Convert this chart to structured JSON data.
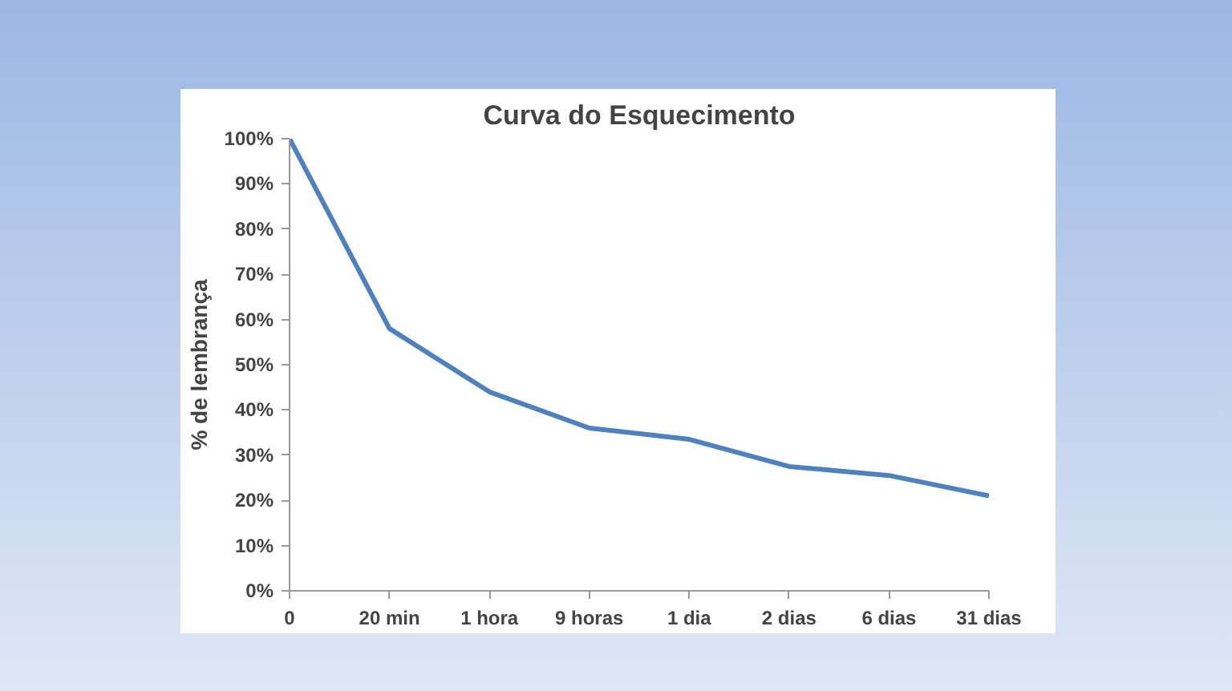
{
  "chart_data": {
    "type": "line",
    "title": "Curva do Esquecimento",
    "ylabel": "% de lembrança",
    "categories": [
      "0",
      "20 min",
      "1 hora",
      "9 horas",
      "1 dia",
      "2 dias",
      "6 dias",
      "31 dias"
    ],
    "series": [
      {
        "color": "#4f81bd",
        "values": [
          100,
          58,
          44,
          36,
          33.5,
          27.5,
          25.5,
          21
        ]
      }
    ],
    "ylim": [
      0,
      100
    ],
    "yticks": [
      {
        "value": 0,
        "label": "0%"
      },
      {
        "value": 10,
        "label": "10%"
      },
      {
        "value": 20,
        "label": "20%"
      },
      {
        "value": 30,
        "label": "30%"
      },
      {
        "value": 40,
        "label": "40%"
      },
      {
        "value": 50,
        "label": "50%"
      },
      {
        "value": 60,
        "label": "60%"
      },
      {
        "value": 70,
        "label": "70%"
      },
      {
        "value": 80,
        "label": "80%"
      },
      {
        "value": 90,
        "label": "90%"
      },
      {
        "value": 100,
        "label": "100%"
      }
    ],
    "marker": "none",
    "line_style": "solid"
  }
}
